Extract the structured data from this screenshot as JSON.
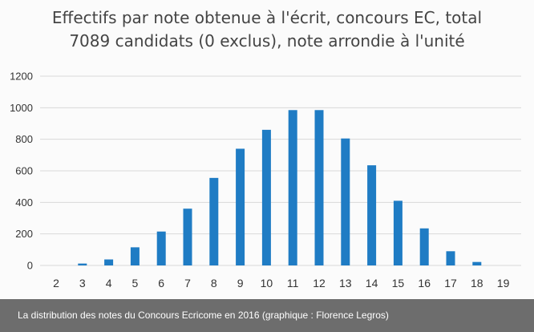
{
  "chart_data": {
    "type": "bar",
    "title_line1": "Effectifs par note obtenue à l'écrit, concours EC, total",
    "title_line2": "7089 candidats (0 exclus), note arrondie à l'unité",
    "categories": [
      "2",
      "3",
      "4",
      "5",
      "6",
      "7",
      "8",
      "9",
      "10",
      "11",
      "12",
      "13",
      "14",
      "15",
      "16",
      "17",
      "18",
      "19"
    ],
    "values": [
      0,
      12,
      38,
      115,
      215,
      360,
      555,
      740,
      860,
      985,
      985,
      805,
      635,
      410,
      235,
      90,
      22,
      0
    ],
    "ylim": [
      0,
      1200
    ],
    "yticks": [
      "0",
      "200",
      "400",
      "600",
      "800",
      "1000",
      "1200"
    ],
    "grid": true,
    "bar_color": "#1f7cc4"
  },
  "caption": "La distribution des notes du Concours Ecricome en 2016 (graphique : Florence Legros)"
}
